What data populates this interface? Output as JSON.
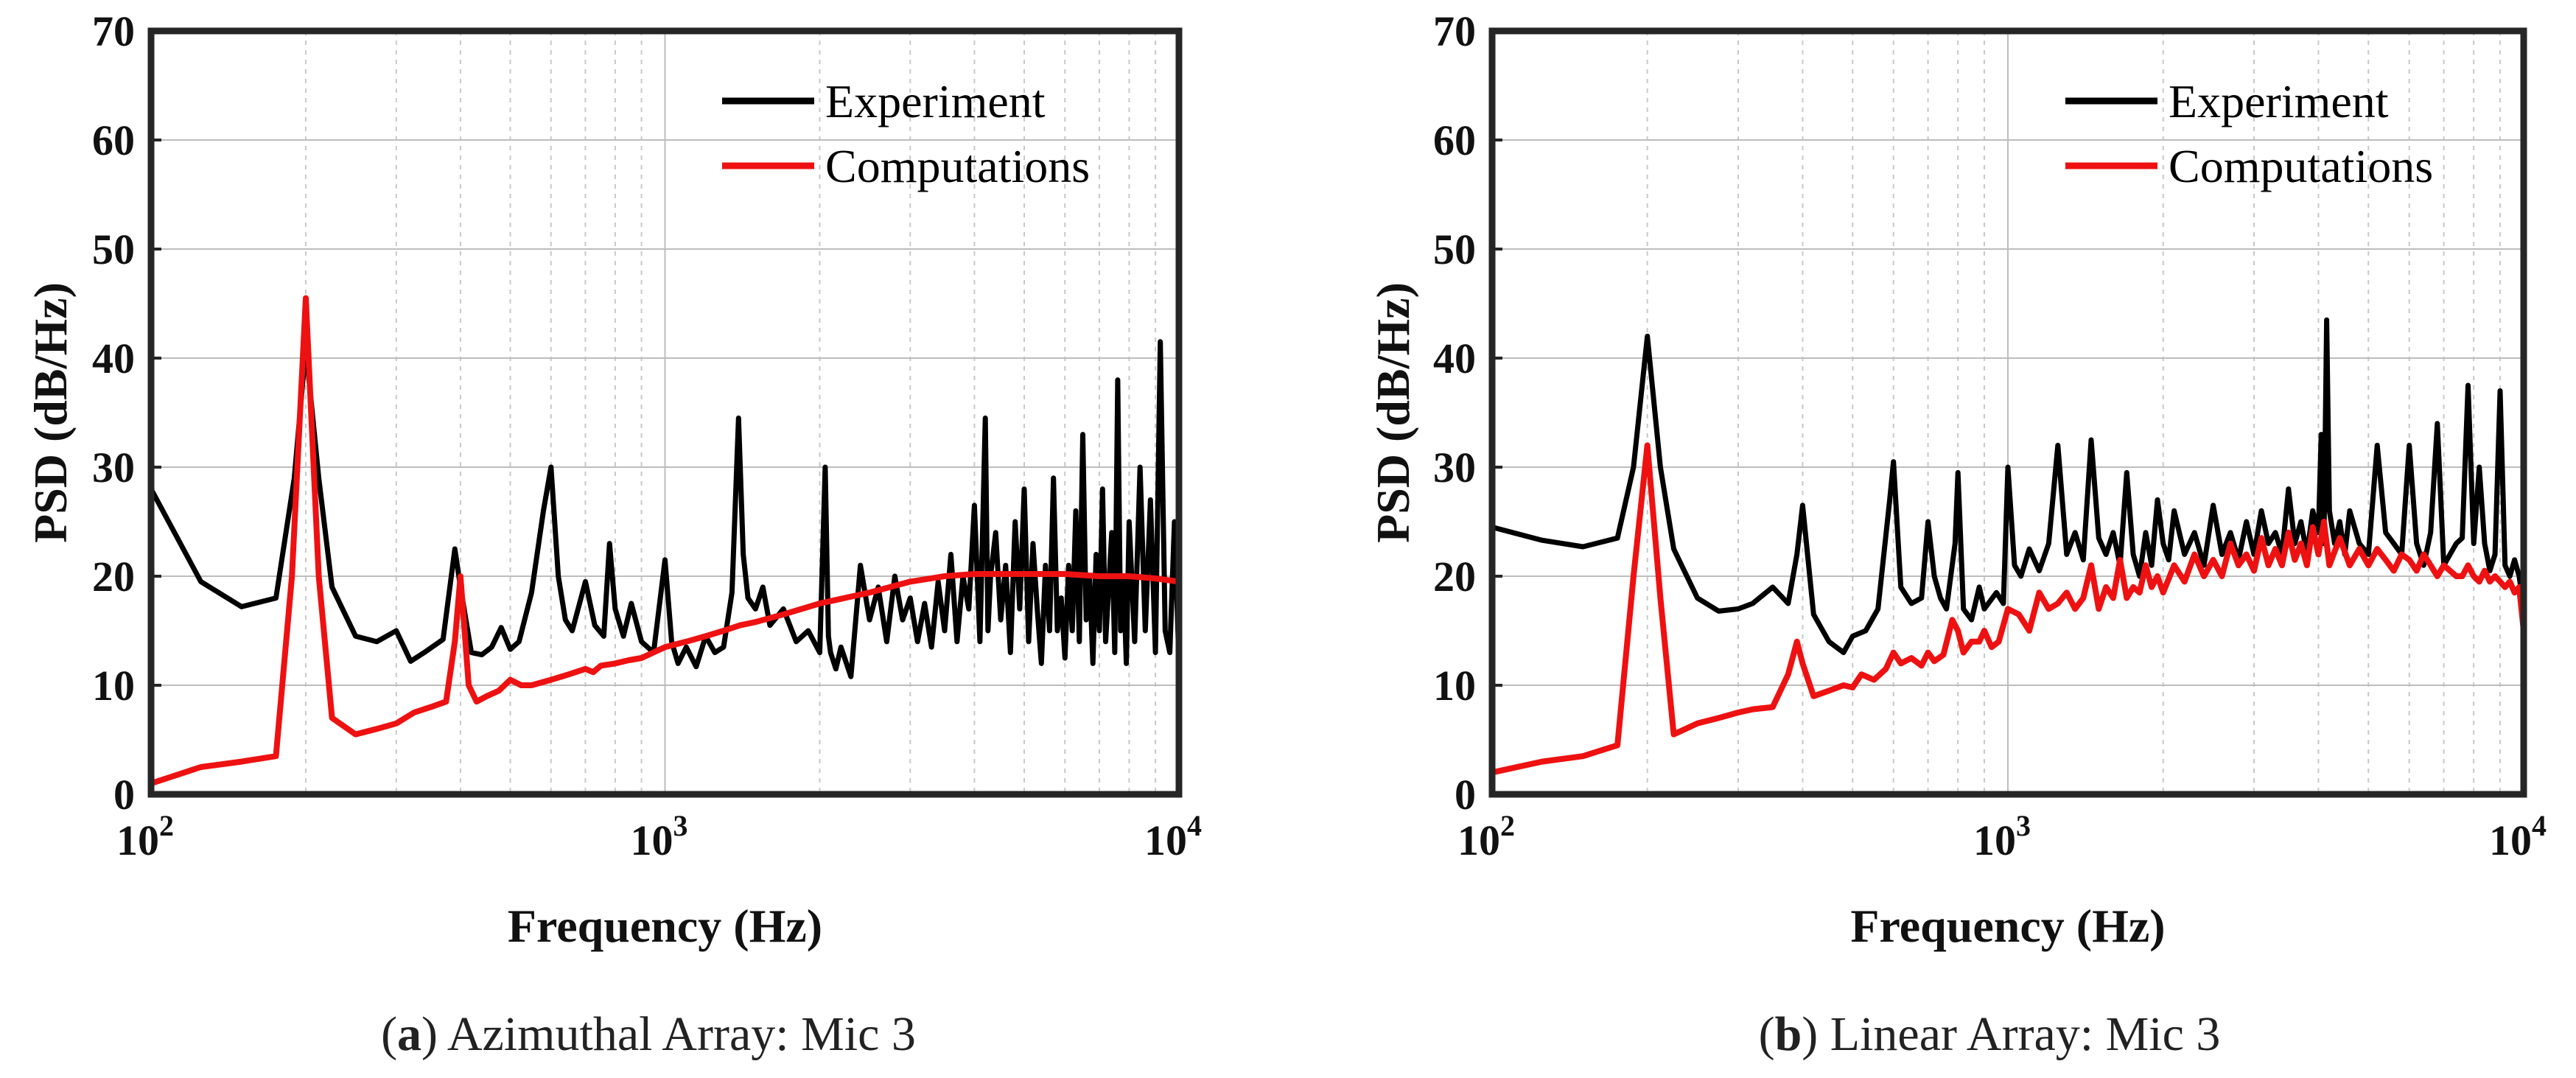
{
  "chart_data": [
    {
      "type": "line",
      "panel": "a",
      "caption_letter": "a",
      "caption_text": "Azimuthal Array: Mic 3",
      "xlabel": "Frequency (Hz)",
      "ylabel": "PSD (dB/Hz)",
      "xscale": "log",
      "xlim": [
        100,
        10000
      ],
      "ylim": [
        0,
        70
      ],
      "yticks": [
        0,
        10,
        20,
        30,
        40,
        50,
        60,
        70
      ],
      "yticklabels": [
        "0",
        "10",
        "20",
        "30",
        "40",
        "50",
        "60",
        "70"
      ],
      "xticks": [
        {
          "base": "10",
          "exp": "2"
        },
        {
          "base": "10",
          "exp": "3"
        },
        {
          "base": "10",
          "exp": "4"
        }
      ],
      "grid": true,
      "legend_position": "top-right",
      "series": [
        {
          "name": "Experiment",
          "color": "#000000",
          "x": [
            100,
            125,
            150,
            175,
            190,
            200,
            212,
            225,
            250,
            275,
            300,
            320,
            340,
            370,
            390,
            400,
            420,
            440,
            460,
            480,
            500,
            520,
            550,
            580,
            600,
            620,
            640,
            660,
            700,
            730,
            760,
            780,
            800,
            830,
            860,
            900,
            950,
            1000,
            1030,
            1060,
            1100,
            1150,
            1200,
            1250,
            1300,
            1350,
            1390,
            1420,
            1450,
            1500,
            1550,
            1600,
            1700,
            1800,
            1900,
            2000,
            2050,
            2080,
            2100,
            2150,
            2200,
            2300,
            2400,
            2500,
            2600,
            2700,
            2800,
            2900,
            3000,
            3100,
            3200,
            3300,
            3400,
            3500,
            3600,
            3700,
            3800,
            3900,
            4000,
            4100,
            4200,
            4250,
            4300,
            4400,
            4500,
            4600,
            4700,
            4800,
            4900,
            5000,
            5100,
            5200,
            5300,
            5400,
            5500,
            5600,
            5700,
            5800,
            5900,
            6000,
            6100,
            6200,
            6300,
            6400,
            6500,
            6600,
            6700,
            6800,
            6900,
            7000,
            7100,
            7200,
            7300,
            7400,
            7500,
            7600,
            7700,
            7800,
            7900,
            8000,
            8200,
            8400,
            8600,
            8800,
            9000,
            9200,
            9400,
            9600,
            9800,
            10000
          ],
          "values": [
            28,
            19.5,
            17.2,
            18,
            29,
            41,
            29,
            19,
            14.5,
            14,
            15,
            12.2,
            13,
            14.2,
            22.5,
            19,
            13,
            12.8,
            13.5,
            15.3,
            13.3,
            14,
            18.5,
            26,
            30,
            20,
            16,
            15,
            19.5,
            15.5,
            14.5,
            23,
            17,
            14.5,
            17.5,
            14,
            13,
            21.5,
            14,
            12,
            13.5,
            11.7,
            14.5,
            13,
            13.5,
            18.5,
            34.5,
            22,
            18,
            17,
            19,
            15.5,
            17,
            14,
            15,
            13,
            30,
            14.5,
            13,
            11.5,
            13.5,
            10.8,
            21,
            16,
            19,
            14,
            20,
            16,
            18,
            14,
            17.5,
            13.5,
            19.5,
            15,
            22,
            14,
            20,
            17,
            26.5,
            14,
            34.5,
            15,
            20,
            24,
            16,
            21,
            13,
            25,
            17,
            28,
            14,
            23,
            17,
            12,
            21,
            15,
            29,
            15,
            18,
            12.5,
            21,
            15,
            26,
            14,
            33,
            16,
            20,
            12,
            22,
            15,
            28,
            14,
            19,
            24,
            13,
            38,
            15,
            20,
            12,
            25,
            14,
            30,
            15,
            27,
            13,
            41.5,
            15,
            13,
            25,
            12
          ]
        },
        {
          "name": "Computations",
          "color": "#ee1111",
          "x": [
            100,
            125,
            150,
            175,
            188,
            200,
            212,
            225,
            250,
            275,
            300,
            325,
            350,
            375,
            390,
            400,
            415,
            430,
            450,
            475,
            500,
            525,
            550,
            600,
            650,
            700,
            725,
            750,
            800,
            850,
            900,
            1000,
            1100,
            1200,
            1300,
            1400,
            1500,
            1700,
            2000,
            2500,
            3000,
            3500,
            4000,
            5000,
            6000,
            7000,
            8000,
            9000,
            10000,
            10000
          ],
          "values": [
            1,
            2.5,
            3,
            3.5,
            20,
            45.5,
            20,
            7,
            5.5,
            6,
            6.5,
            7.5,
            8,
            8.5,
            14,
            20,
            10,
            8.5,
            9,
            9.5,
            10.5,
            10,
            10,
            10.5,
            11,
            11.5,
            11.2,
            11.8,
            12,
            12.3,
            12.5,
            13.5,
            14,
            14.5,
            15,
            15.5,
            15.8,
            16.5,
            17.5,
            18.5,
            19.5,
            20,
            20.2,
            20.2,
            20.2,
            20,
            20,
            19.8,
            19.5,
            15
          ]
        }
      ]
    },
    {
      "type": "line",
      "panel": "b",
      "caption_letter": "b",
      "caption_text": "Linear Array: Mic 3",
      "xlabel": "Frequency (Hz)",
      "ylabel": "PSD (dB/Hz)",
      "xscale": "log",
      "xlim": [
        100,
        10000
      ],
      "ylim": [
        0,
        70
      ],
      "yticks": [
        0,
        10,
        20,
        30,
        40,
        50,
        60,
        70
      ],
      "yticklabels": [
        "0",
        "10",
        "20",
        "30",
        "40",
        "50",
        "60",
        "70"
      ],
      "xticks": [
        {
          "base": "10",
          "exp": "2"
        },
        {
          "base": "10",
          "exp": "3"
        },
        {
          "base": "10",
          "exp": "4"
        }
      ],
      "grid": true,
      "legend_position": "top-right",
      "series": [
        {
          "name": "Experiment",
          "color": "#000000",
          "x": [
            100,
            125,
            150,
            175,
            188,
            200,
            212,
            225,
            250,
            275,
            300,
            320,
            350,
            375,
            390,
            400,
            420,
            450,
            480,
            500,
            530,
            560,
            590,
            600,
            620,
            650,
            680,
            700,
            720,
            740,
            760,
            790,
            800,
            820,
            850,
            880,
            900,
            950,
            980,
            1000,
            1030,
            1060,
            1100,
            1150,
            1200,
            1250,
            1300,
            1350,
            1400,
            1450,
            1500,
            1550,
            1600,
            1650,
            1700,
            1750,
            1800,
            1850,
            1900,
            1950,
            2000,
            2050,
            2100,
            2200,
            2300,
            2400,
            2500,
            2600,
            2700,
            2800,
            2900,
            3000,
            3100,
            3200,
            3300,
            3400,
            3500,
            3600,
            3700,
            3800,
            3900,
            4000,
            4050,
            4100,
            4150,
            4200,
            4300,
            4400,
            4500,
            4600,
            4800,
            5000,
            5200,
            5400,
            5600,
            5800,
            6000,
            6200,
            6400,
            6600,
            6800,
            7000,
            7200,
            7400,
            7600,
            7800,
            8000,
            8200,
            8400,
            8600,
            8800,
            9000,
            9200,
            9400,
            9600,
            9800,
            10000
          ],
          "values": [
            24.5,
            23.3,
            22.7,
            23.5,
            30,
            42,
            30,
            22.5,
            18,
            16.8,
            17,
            17.5,
            19,
            17.5,
            22,
            26.5,
            16.5,
            14,
            13,
            14.5,
            15,
            17,
            27,
            30.5,
            19,
            17.5,
            18,
            25,
            20,
            18,
            17,
            23,
            29.5,
            17,
            16,
            19,
            17,
            18.5,
            17.5,
            30,
            21,
            20,
            22.5,
            20.5,
            23,
            32,
            22,
            24,
            21.5,
            32.5,
            23.5,
            22,
            24,
            21,
            29.5,
            22,
            20,
            24,
            21,
            27,
            23,
            21.5,
            26,
            22,
            24,
            21,
            26.5,
            22,
            24,
            21.5,
            25,
            22,
            26,
            23,
            24,
            22,
            28,
            23,
            25,
            22,
            26,
            24,
            33,
            23,
            43.5,
            26,
            23,
            25,
            22,
            26,
            23,
            22,
            32,
            24,
            23,
            22,
            32,
            23,
            21,
            24,
            34,
            21,
            22,
            23,
            23.5,
            37.5,
            23,
            30,
            23,
            20.5,
            22,
            37,
            21,
            20,
            21.5,
            20,
            17
          ],
          "stroke_width": 7
        },
        {
          "name": "Computations",
          "color": "#ee1111",
          "x": [
            100,
            125,
            150,
            175,
            188,
            200,
            212,
            225,
            250,
            275,
            300,
            320,
            350,
            375,
            390,
            400,
            420,
            450,
            480,
            500,
            520,
            550,
            580,
            600,
            620,
            650,
            680,
            700,
            720,
            750,
            780,
            800,
            820,
            850,
            880,
            900,
            930,
            960,
            1000,
            1050,
            1100,
            1150,
            1200,
            1250,
            1300,
            1350,
            1400,
            1450,
            1500,
            1550,
            1600,
            1650,
            1700,
            1750,
            1800,
            1850,
            1900,
            1950,
            2000,
            2100,
            2200,
            2300,
            2400,
            2500,
            2600,
            2700,
            2800,
            2900,
            3000,
            3100,
            3200,
            3300,
            3400,
            3500,
            3600,
            3700,
            3800,
            3900,
            4000,
            4100,
            4200,
            4400,
            4600,
            4800,
            5000,
            5200,
            5400,
            5600,
            5800,
            6000,
            6200,
            6400,
            6600,
            6800,
            7000,
            7200,
            7400,
            7600,
            7800,
            8000,
            8200,
            8400,
            8600,
            8800,
            9000,
            9200,
            9400,
            9600,
            9800,
            10000
          ],
          "values": [
            2,
            3,
            3.5,
            4.5,
            20,
            32,
            18,
            5.5,
            6.5,
            7,
            7.5,
            7.8,
            8,
            11,
            14,
            12,
            9,
            9.5,
            10,
            9.8,
            11,
            10.5,
            11.5,
            13,
            12,
            12.5,
            11.8,
            13,
            12.2,
            12.8,
            16,
            15,
            13,
            14,
            14,
            15,
            13.5,
            14,
            17,
            16.5,
            15,
            18.5,
            17,
            17.5,
            18.5,
            17,
            18,
            21,
            17,
            19,
            18,
            21.5,
            18,
            19,
            18.5,
            21,
            19,
            20,
            18.5,
            21,
            19.5,
            22,
            20,
            21.5,
            20,
            23,
            21,
            22,
            20.5,
            23.5,
            21,
            22.5,
            21,
            24,
            21.5,
            23,
            21,
            24.5,
            22,
            25,
            21,
            23.5,
            21,
            22.5,
            21,
            22.5,
            21.5,
            20.5,
            22,
            21.5,
            20.5,
            22,
            21,
            20,
            21,
            20.5,
            20,
            20,
            21,
            20,
            19.5,
            20.5,
            19.5,
            20,
            19.5,
            19,
            19.5,
            18.5,
            19,
            15
          ]
        }
      ]
    }
  ]
}
